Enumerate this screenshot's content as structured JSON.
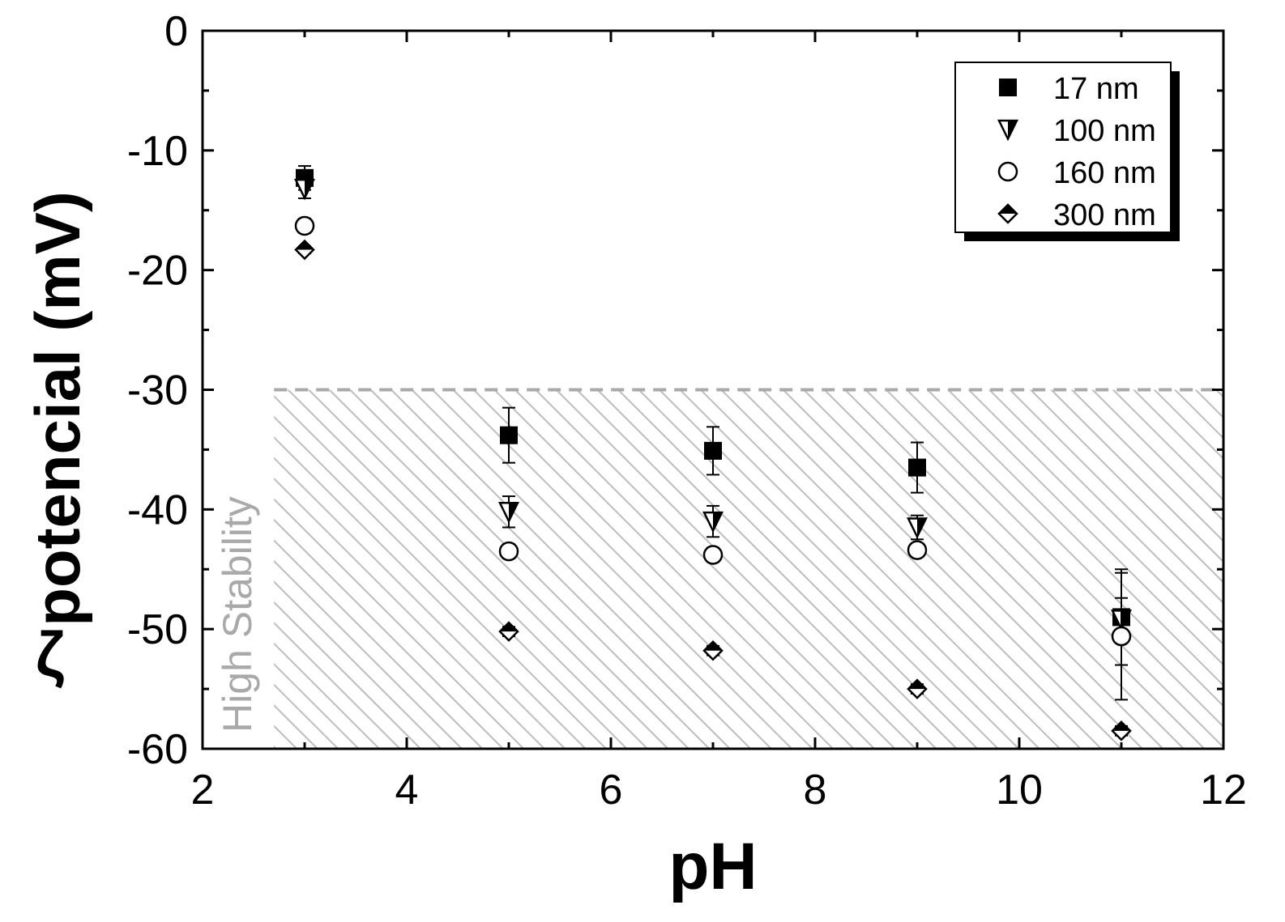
{
  "chart_data": {
    "type": "scatter",
    "title": "",
    "xlabel": "pH",
    "ylabel_symbol": "ζ",
    "ylabel": "potencial (mV)",
    "xlim": [
      2,
      12
    ],
    "ylim": [
      -60,
      0
    ],
    "x_ticks": [
      2,
      4,
      6,
      8,
      10,
      12
    ],
    "y_ticks": [
      0,
      -10,
      -20,
      -30,
      -40,
      -50,
      -60
    ],
    "grid": false,
    "legend_position": "top-right",
    "region": {
      "label": "High Stability",
      "y_from": -60,
      "y_to": -30,
      "x_from": 2.7,
      "x_to": 12,
      "color": "#bdbdbd"
    },
    "series": [
      {
        "name": "17 nm",
        "marker": "filled-square",
        "points": [
          {
            "x": 3,
            "y": -12.3,
            "err": 1.0
          },
          {
            "x": 5,
            "y": -33.8,
            "err": 2.3
          },
          {
            "x": 7,
            "y": -35.1,
            "err": 2.0
          },
          {
            "x": 9,
            "y": -36.5,
            "err": 2.1
          },
          {
            "x": 11,
            "y": -49.0,
            "err": 4.0
          }
        ]
      },
      {
        "name": "100 nm",
        "marker": "half-triangle-down",
        "points": [
          {
            "x": 3,
            "y": -13.2,
            "err": 0.8
          },
          {
            "x": 5,
            "y": -40.2,
            "err": 1.3
          },
          {
            "x": 7,
            "y": -41.0,
            "err": 1.3
          },
          {
            "x": 9,
            "y": -41.5,
            "err": 1.0
          },
          {
            "x": 11,
            "y": -49.2,
            "err": 1.8
          }
        ]
      },
      {
        "name": "160 nm",
        "marker": "open-circle",
        "points": [
          {
            "x": 3,
            "y": -16.3,
            "err": 0.6
          },
          {
            "x": 5,
            "y": -43.5,
            "err": 0.6
          },
          {
            "x": 7,
            "y": -43.8,
            "err": 0.6
          },
          {
            "x": 9,
            "y": -43.4,
            "err": 0.5
          },
          {
            "x": 11,
            "y": -50.6,
            "err": 5.3
          }
        ]
      },
      {
        "name": "300 nm",
        "marker": "half-diamond",
        "points": [
          {
            "x": 3,
            "y": -18.3,
            "err": 0.3
          },
          {
            "x": 5,
            "y": -50.2,
            "err": 0.4
          },
          {
            "x": 7,
            "y": -51.8,
            "err": 0.4
          },
          {
            "x": 9,
            "y": -55.0,
            "err": 0.4
          },
          {
            "x": 11,
            "y": -58.5,
            "err": 0.4
          }
        ]
      }
    ]
  }
}
